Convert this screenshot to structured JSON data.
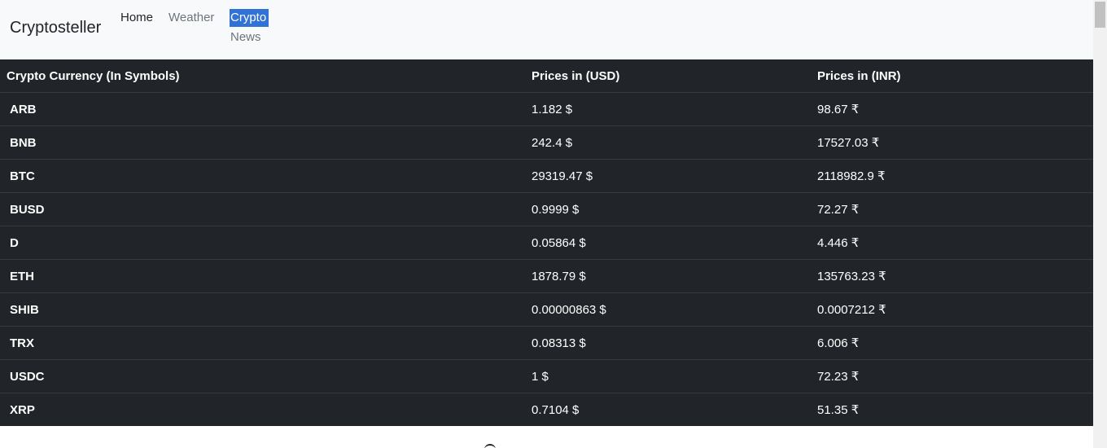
{
  "navbar": {
    "brand": "Cryptosteller",
    "links": [
      {
        "label": "Home"
      },
      {
        "label": "Weather"
      },
      {
        "label": "Crypto"
      },
      {
        "label": "News"
      }
    ]
  },
  "table": {
    "headers": {
      "symbol": "Crypto Currency (In Symbols)",
      "usd": "Prices in (USD)",
      "inr": "Prices in (INR)"
    },
    "rows": [
      {
        "symbol": "ARB",
        "usd": "1.182 $",
        "inr": "98.67 ₹"
      },
      {
        "symbol": "BNB",
        "usd": "242.4 $",
        "inr": "17527.03 ₹"
      },
      {
        "symbol": "BTC",
        "usd": "29319.47 $",
        "inr": "2118982.9 ₹"
      },
      {
        "symbol": "BUSD",
        "usd": "0.9999 $",
        "inr": "72.27 ₹"
      },
      {
        "symbol": "D",
        "usd": "0.05864 $",
        "inr": "4.446 ₹"
      },
      {
        "symbol": "ETH",
        "usd": "1878.79 $",
        "inr": "135763.23 ₹"
      },
      {
        "symbol": "SHIB",
        "usd": "0.00000863 $",
        "inr": "0.0007212 ₹"
      },
      {
        "symbol": "TRX",
        "usd": "0.08313 $",
        "inr": "6.006 ₹"
      },
      {
        "symbol": "USDC",
        "usd": "1 $",
        "inr": "72.23 ₹"
      },
      {
        "symbol": "XRP",
        "usd": "0.7104 $",
        "inr": "51.35 ₹"
      }
    ]
  },
  "colors": {
    "navbar_bg": "#f8f9fa",
    "active_link_bg": "#3072d6",
    "table_bg": "#212529",
    "table_border": "#373b3e"
  }
}
